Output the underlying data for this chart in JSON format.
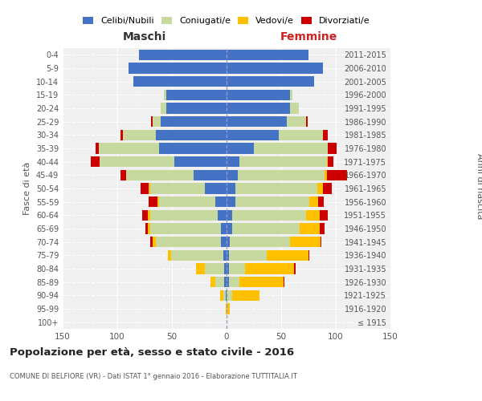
{
  "age_groups": [
    "100+",
    "95-99",
    "90-94",
    "85-89",
    "80-84",
    "75-79",
    "70-74",
    "65-69",
    "60-64",
    "55-59",
    "50-54",
    "45-49",
    "40-44",
    "35-39",
    "30-34",
    "25-29",
    "20-24",
    "15-19",
    "10-14",
    "5-9",
    "0-4"
  ],
  "birth_years": [
    "≤ 1915",
    "1916-1920",
    "1921-1925",
    "1926-1930",
    "1931-1935",
    "1936-1940",
    "1941-1945",
    "1946-1950",
    "1951-1955",
    "1956-1960",
    "1961-1965",
    "1966-1970",
    "1971-1975",
    "1976-1980",
    "1981-1985",
    "1986-1990",
    "1991-1995",
    "1996-2000",
    "2001-2005",
    "2006-2010",
    "2011-2015"
  ],
  "colors": {
    "celibe": "#4472c4",
    "coniugato": "#c8d9a0",
    "vedovo": "#ffc000",
    "divorziato": "#cc0000"
  },
  "maschi": {
    "celibe": [
      0,
      0,
      1,
      2,
      2,
      3,
      5,
      5,
      8,
      10,
      20,
      30,
      48,
      62,
      65,
      60,
      55,
      55,
      85,
      90,
      80
    ],
    "coniugato": [
      0,
      0,
      2,
      8,
      18,
      48,
      60,
      65,
      62,
      52,
      50,
      62,
      68,
      55,
      30,
      8,
      5,
      2,
      0,
      0,
      0
    ],
    "vedovo": [
      0,
      1,
      3,
      5,
      8,
      3,
      3,
      2,
      2,
      1,
      1,
      0,
      0,
      0,
      0,
      0,
      0,
      0,
      0,
      0,
      0
    ],
    "divorziato": [
      0,
      0,
      0,
      0,
      0,
      0,
      2,
      2,
      5,
      8,
      8,
      5,
      8,
      3,
      2,
      1,
      0,
      0,
      0,
      0,
      0
    ]
  },
  "femmine": {
    "nubile": [
      0,
      0,
      0,
      2,
      2,
      2,
      3,
      5,
      5,
      8,
      8,
      10,
      12,
      25,
      48,
      55,
      58,
      58,
      80,
      88,
      75
    ],
    "coniugata": [
      0,
      1,
      5,
      10,
      15,
      35,
      55,
      62,
      68,
      68,
      75,
      80,
      80,
      68,
      40,
      18,
      8,
      2,
      0,
      0,
      0
    ],
    "vedova": [
      0,
      2,
      25,
      40,
      45,
      38,
      28,
      18,
      12,
      8,
      5,
      2,
      1,
      0,
      0,
      0,
      0,
      0,
      0,
      0,
      0
    ],
    "divorziata": [
      0,
      0,
      0,
      1,
      1,
      1,
      1,
      5,
      8,
      5,
      8,
      18,
      5,
      8,
      5,
      1,
      0,
      0,
      0,
      0,
      0
    ]
  },
  "title": "Popolazione per età, sesso e stato civile - 2016",
  "subtitle": "COMUNE DI BELFIORE (VR) - Dati ISTAT 1° gennaio 2016 - Elaborazione TUTTITALIA.IT",
  "xlim": 150,
  "legend_labels": [
    "Celibi/Nubili",
    "Coniugati/e",
    "Vedovi/e",
    "Divorziati/e"
  ],
  "ylabel_left": "Fasce di età",
  "ylabel_right": "Anni di nascita",
  "maschi_label": "Maschi",
  "femmine_label": "Femmine",
  "bg_color": "#f0f0f0",
  "maschi_color": "#333333",
  "femmine_color": "#cc2222"
}
